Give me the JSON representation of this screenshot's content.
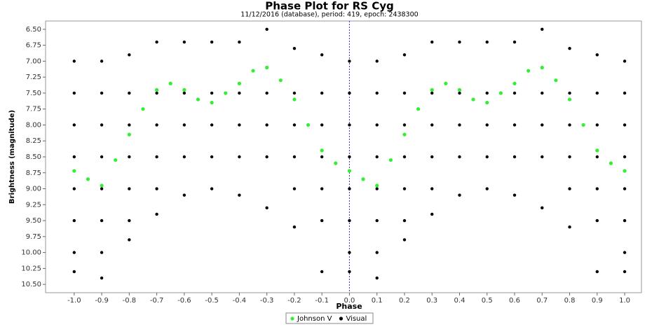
{
  "chart_data": {
    "type": "scatter",
    "title": "Phase Plot for RS Cyg",
    "subtitle": "11/12/2016 (database), period: 419, epoch: 2438300",
    "x_label": "Phase",
    "y_label": "Brightness (magnitude)",
    "xlim": [
      -1.104,
      1.061
    ],
    "ylim": [
      10.63,
      6.37
    ],
    "xticks": [
      {
        "value": -1.0,
        "label": "-1.0"
      },
      {
        "value": -0.9,
        "label": "-0.9"
      },
      {
        "value": -0.8,
        "label": "-0.8"
      },
      {
        "value": -0.7,
        "label": "-0.7"
      },
      {
        "value": -0.6,
        "label": "-0.6"
      },
      {
        "value": -0.5,
        "label": "-0.5"
      },
      {
        "value": -0.4,
        "label": "-0.4"
      },
      {
        "value": -0.3,
        "label": "-0.3"
      },
      {
        "value": -0.2,
        "label": "-0.2"
      },
      {
        "value": -0.1,
        "label": "-0.1"
      },
      {
        "value": 0,
        "label": "0.0"
      },
      {
        "value": 0.1,
        "label": "0.1"
      },
      {
        "value": 0.2,
        "label": "0.2"
      },
      {
        "value": 0.3,
        "label": "0.3"
      },
      {
        "value": 0.4,
        "label": "0.4"
      },
      {
        "value": 0.5,
        "label": "0.5"
      },
      {
        "value": 0.6,
        "label": "0.6"
      },
      {
        "value": 0.7,
        "label": "0.7"
      },
      {
        "value": 0.8,
        "label": "0.8"
      },
      {
        "value": 0.9,
        "label": "0.9"
      },
      {
        "value": 1.0,
        "label": "1.0"
      }
    ],
    "yticks": [
      {
        "value": 6.5,
        "label": "6.50"
      },
      {
        "value": 6.75,
        "label": "6.75"
      },
      {
        "value": 7.0,
        "label": "7.00"
      },
      {
        "value": 7.25,
        "label": "7.25"
      },
      {
        "value": 7.5,
        "label": "7.50"
      },
      {
        "value": 7.75,
        "label": "7.75"
      },
      {
        "value": 8.0,
        "label": "8.00"
      },
      {
        "value": 8.25,
        "label": "8.25"
      },
      {
        "value": 8.5,
        "label": "8.50"
      },
      {
        "value": 8.75,
        "label": "8.75"
      },
      {
        "value": 9.0,
        "label": "9.00"
      },
      {
        "value": 9.25,
        "label": "9.25"
      },
      {
        "value": 9.5,
        "label": "9.50"
      },
      {
        "value": 9.75,
        "label": "9.75"
      },
      {
        "value": 10.0,
        "label": "10.00"
      },
      {
        "value": 10.25,
        "label": "10.25"
      },
      {
        "value": 10.5,
        "label": "10.50"
      }
    ],
    "domain_marker": 0,
    "domain_marker_color": "#3333cc",
    "series": [
      {
        "name": "Visual",
        "color": "#000000",
        "x": [
          -1.0,
          -1.0,
          -1.0,
          -1.0,
          -1.0,
          -1.0,
          -1.0,
          -1.0,
          -0.9,
          -0.9,
          -0.9,
          -0.9,
          -0.9,
          -0.9,
          -0.9,
          -0.9,
          -0.8,
          -0.8,
          -0.8,
          -0.8,
          -0.8,
          -0.8,
          -0.8,
          -0.7,
          -0.7,
          -0.7,
          -0.7,
          -0.7,
          -0.7,
          -0.6,
          -0.6,
          -0.6,
          -0.6,
          -0.6,
          -0.5,
          -0.5,
          -0.5,
          -0.5,
          -0.5,
          -0.4,
          -0.4,
          -0.4,
          -0.4,
          -0.4,
          -0.3,
          -0.3,
          -0.3,
          -0.3,
          -0.3,
          -0.2,
          -0.2,
          -0.2,
          -0.2,
          -0.2,
          -0.2,
          -0.1,
          -0.1,
          -0.1,
          -0.1,
          -0.1,
          -0.1,
          -0.1,
          0.0,
          0.0,
          0.0,
          0.0,
          0.0,
          0.0,
          0.0,
          0.0,
          0.1,
          0.1,
          0.1,
          0.1,
          0.1,
          0.1,
          0.1,
          0.1,
          0.2,
          0.2,
          0.2,
          0.2,
          0.2,
          0.2,
          0.2,
          0.3,
          0.3,
          0.3,
          0.3,
          0.3,
          0.3,
          0.4,
          0.4,
          0.4,
          0.4,
          0.4,
          0.5,
          0.5,
          0.5,
          0.5,
          0.5,
          0.6,
          0.6,
          0.6,
          0.6,
          0.6,
          0.7,
          0.7,
          0.7,
          0.7,
          0.7,
          0.8,
          0.8,
          0.8,
          0.8,
          0.8,
          0.8,
          0.9,
          0.9,
          0.9,
          0.9,
          0.9,
          0.9,
          0.9,
          1.0,
          1.0,
          1.0,
          1.0,
          1.0,
          1.0,
          1.0,
          1.0
        ],
        "values": [
          7.0,
          7.5,
          8.0,
          8.5,
          9.0,
          9.5,
          10.0,
          10.3,
          7.0,
          7.5,
          8.0,
          8.5,
          9.0,
          9.5,
          10.0,
          10.4,
          6.9,
          7.5,
          8.0,
          8.5,
          9.0,
          9.5,
          9.8,
          6.7,
          7.5,
          8.0,
          8.5,
          9.0,
          9.4,
          6.7,
          7.5,
          8.0,
          8.5,
          9.1,
          6.7,
          7.5,
          8.0,
          8.5,
          9.0,
          6.7,
          7.5,
          8.0,
          8.5,
          9.1,
          6.5,
          7.5,
          8.0,
          8.5,
          9.3,
          6.8,
          7.5,
          8.0,
          8.5,
          9.0,
          9.6,
          6.9,
          7.5,
          8.0,
          8.5,
          9.0,
          9.5,
          10.3,
          7.0,
          7.5,
          8.0,
          8.5,
          9.0,
          9.5,
          10.0,
          10.3,
          7.0,
          7.5,
          8.0,
          8.5,
          9.0,
          9.5,
          10.0,
          10.4,
          6.9,
          7.5,
          8.0,
          8.5,
          9.0,
          9.5,
          9.8,
          6.7,
          7.5,
          8.0,
          8.5,
          9.0,
          9.4,
          6.7,
          7.5,
          8.0,
          8.5,
          9.1,
          6.7,
          7.5,
          8.0,
          8.5,
          9.0,
          6.7,
          7.5,
          8.0,
          8.5,
          9.1,
          6.5,
          7.5,
          8.0,
          8.5,
          9.3,
          6.8,
          7.5,
          8.0,
          8.5,
          9.0,
          9.6,
          6.9,
          7.5,
          8.0,
          8.5,
          9.0,
          9.5,
          10.3,
          7.0,
          7.5,
          8.0,
          8.5,
          9.0,
          9.5,
          10.0,
          10.3
        ]
      },
      {
        "name": "Johnson V",
        "color": "#33ee33",
        "x": [
          -1.0,
          -0.95,
          -0.9,
          -0.85,
          -0.8,
          -0.75,
          -0.7,
          -0.65,
          -0.6,
          -0.55,
          -0.5,
          -0.45,
          -0.4,
          -0.35,
          -0.3,
          -0.25,
          -0.2,
          -0.15,
          -0.1,
          -0.05,
          0.0,
          0.05,
          0.1,
          0.15,
          0.2,
          0.25,
          0.3,
          0.35,
          0.4,
          0.45,
          0.5,
          0.55,
          0.6,
          0.65,
          0.7,
          0.75,
          0.8,
          0.85,
          0.9,
          0.95,
          1.0
        ],
        "values": [
          8.72,
          8.85,
          8.95,
          8.55,
          8.15,
          7.75,
          7.45,
          7.35,
          7.45,
          7.6,
          7.65,
          7.5,
          7.35,
          7.15,
          7.1,
          7.3,
          7.6,
          8.0,
          8.4,
          8.6,
          8.72,
          8.85,
          8.95,
          8.55,
          8.15,
          7.75,
          7.45,
          7.35,
          7.45,
          7.6,
          7.65,
          7.5,
          7.35,
          7.15,
          7.1,
          7.3,
          7.6,
          8.0,
          8.4,
          8.6,
          8.72
        ]
      }
    ]
  }
}
